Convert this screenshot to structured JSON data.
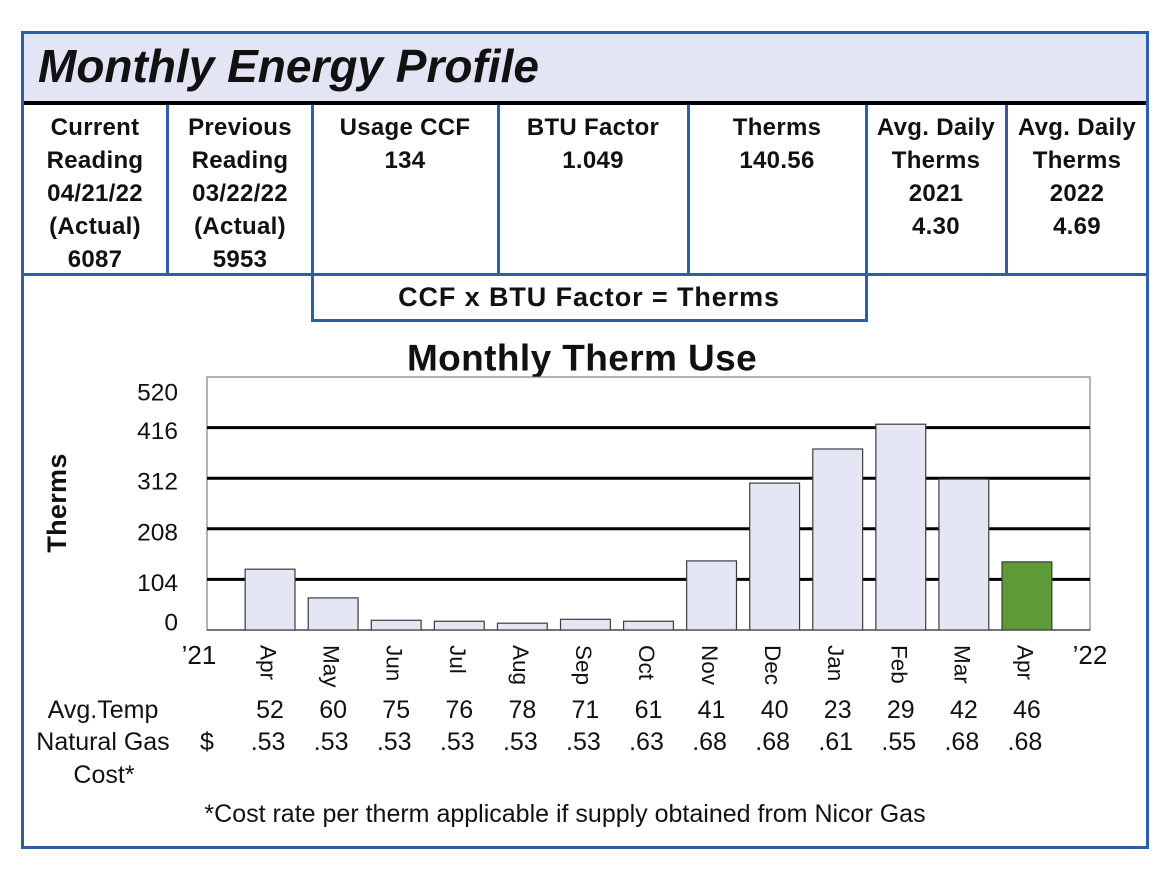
{
  "header": {
    "title": "Monthly Energy Profile"
  },
  "summary": {
    "current_reading": {
      "label": [
        "Current",
        "Reading"
      ],
      "date": "04/21/22",
      "status": "(Actual)",
      "value": "6087"
    },
    "previous_reading": {
      "label": [
        "Previous",
        "Reading"
      ],
      "date": "03/22/22",
      "status": "(Actual)",
      "value": "5953"
    },
    "usage_ccf": {
      "label": "Usage CCF",
      "value": "134"
    },
    "btu_factor": {
      "label": "BTU Factor",
      "value": "1.049"
    },
    "therms": {
      "label": "Therms",
      "value": "140.56"
    },
    "avg_daily_2021": {
      "label": [
        "Avg. Daily",
        "Therms"
      ],
      "year": "2021",
      "value": "4.30"
    },
    "avg_daily_2022": {
      "label": [
        "Avg. Daily",
        "Therms"
      ],
      "year": "2022",
      "value": "4.69"
    }
  },
  "formula": "CCF x BTU Factor = Therms",
  "chart_data": {
    "type": "bar",
    "title": "Monthly Therm Use",
    "xlabel": "",
    "ylabel": "Therms",
    "categories": [
      "Apr",
      "May",
      "Jun",
      "Jul",
      "Aug",
      "Sep",
      "Oct",
      "Nov",
      "Dec",
      "Jan",
      "Feb",
      "Mar",
      "Apr"
    ],
    "values": [
      125,
      66,
      20,
      18,
      14,
      22,
      18,
      142,
      302,
      372,
      423,
      310,
      140
    ],
    "x_range_labels": [
      "’21",
      "’22"
    ],
    "yticks": [
      520,
      416,
      312,
      208,
      104,
      0
    ],
    "ylim": [
      0,
      520
    ],
    "grid": true,
    "bar_color": "#e5e6f4",
    "highlight": {
      "index": 12,
      "color": "#5e9a38"
    }
  },
  "monthly_details": {
    "avg_temp": {
      "label": "Avg.Temp",
      "values": [
        "52",
        "60",
        "75",
        "76",
        "78",
        "71",
        "61",
        "41",
        "40",
        "23",
        "29",
        "42",
        "46"
      ]
    },
    "gas_cost": {
      "label": [
        "Natural Gas",
        "Cost*"
      ],
      "currency": "$",
      "values": [
        ".53",
        ".53",
        ".53",
        ".53",
        ".53",
        ".53",
        ".63",
        ".68",
        ".68",
        ".61",
        ".55",
        ".68",
        ".68"
      ]
    }
  },
  "footnote": "*Cost rate per therm applicable if supply obtained from Nicor Gas",
  "colors": {
    "frame": "#2e5ea8",
    "title_band": "#e4e5f4"
  }
}
